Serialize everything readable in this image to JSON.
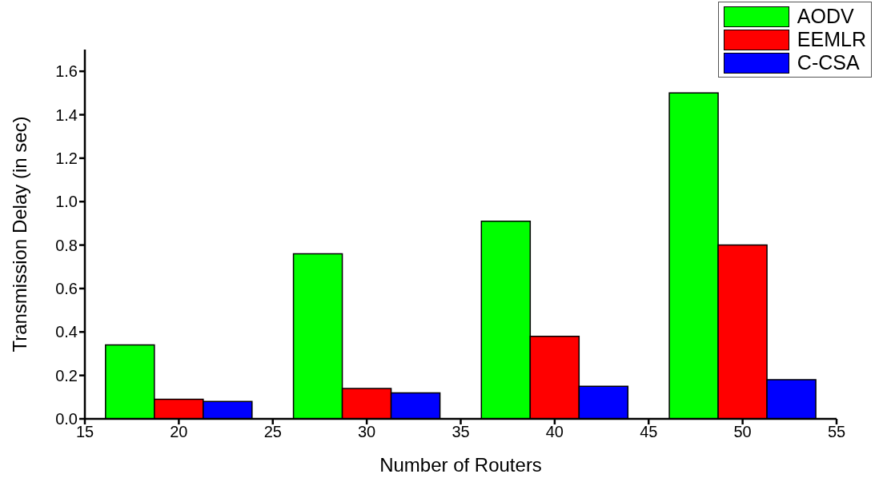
{
  "chart_data": {
    "type": "bar",
    "xlabel": "Number of Routers",
    "ylabel": "Transmission Delay (in sec)",
    "x": [
      20,
      30,
      40,
      50
    ],
    "series": [
      {
        "name": "AODV",
        "color": "#00ff00",
        "values": [
          0.34,
          0.76,
          0.91,
          1.5
        ]
      },
      {
        "name": "EEMLR",
        "color": "#ff0000",
        "values": [
          0.09,
          0.14,
          0.38,
          0.8
        ]
      },
      {
        "name": "C-CSA",
        "color": "#0000ff",
        "values": [
          0.08,
          0.12,
          0.15,
          0.18
        ]
      }
    ],
    "xlim": [
      15,
      55
    ],
    "xticks": [
      15,
      20,
      25,
      30,
      35,
      40,
      45,
      50,
      55
    ],
    "ylim": [
      0,
      1.7
    ],
    "yticks": [
      {
        "value": 0,
        "label": "0.0"
      },
      {
        "value": 0.2,
        "label": "0.2"
      },
      {
        "value": 0.4,
        "label": "0.4"
      },
      {
        "value": 0.6,
        "label": "0.6"
      },
      {
        "value": 0.8,
        "label": "0.8"
      },
      {
        "value": 1,
        "label": "1.0"
      },
      {
        "value": 1.2,
        "label": "1.2"
      },
      {
        "value": 1.4,
        "label": "1.4"
      },
      {
        "value": 1.6,
        "label": "1.6"
      }
    ],
    "grid": false,
    "legend": "top right"
  }
}
